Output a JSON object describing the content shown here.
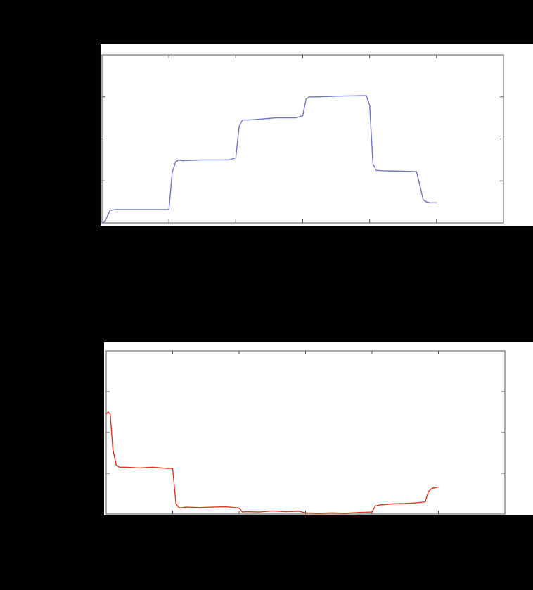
{
  "chart_data": [
    {
      "type": "line",
      "title": "",
      "xlabel": "",
      "ylabel": "",
      "xlim": [
        0,
        6
      ],
      "ylim": [
        0,
        4
      ],
      "x_ticks": [
        1,
        2,
        3,
        4,
        5
      ],
      "y_ticks": [
        1,
        2,
        3
      ],
      "grid": false,
      "series": [
        {
          "color": "#6f76c8",
          "x": [
            0,
            0.05,
            0.12,
            0.2,
            0.5,
            1.0,
            1.05,
            1.1,
            1.15,
            1.2,
            1.5,
            1.9,
            2.0,
            2.05,
            2.1,
            2.2,
            2.6,
            2.9,
            3.0,
            3.05,
            3.1,
            3.2,
            3.6,
            3.95,
            4.0,
            4.05,
            4.1,
            4.2,
            4.5,
            4.7,
            4.75,
            4.8,
            4.85,
            4.9,
            5.0
          ],
          "y": [
            0.0,
            0.05,
            0.3,
            0.32,
            0.32,
            0.32,
            1.2,
            1.45,
            1.5,
            1.48,
            1.5,
            1.5,
            1.55,
            2.3,
            2.45,
            2.45,
            2.5,
            2.5,
            2.55,
            2.95,
            3.0,
            3.0,
            3.02,
            3.03,
            2.8,
            1.4,
            1.25,
            1.24,
            1.23,
            1.22,
            0.9,
            0.55,
            0.5,
            0.48,
            0.48
          ]
        }
      ]
    },
    {
      "type": "line",
      "title": "",
      "xlabel": "",
      "ylabel": "",
      "xlim": [
        0,
        6
      ],
      "ylim": [
        0,
        4
      ],
      "x_ticks": [
        1,
        2,
        3,
        4,
        5
      ],
      "y_ticks": [
        1,
        2,
        3
      ],
      "grid": false,
      "series": [
        {
          "color": "#e2371c",
          "x": [
            0,
            0.03,
            0.06,
            0.1,
            0.15,
            0.2,
            0.3,
            0.5,
            0.7,
            0.9,
            1.0,
            1.05,
            1.1,
            1.2,
            1.4,
            1.6,
            1.8,
            2.0,
            2.05,
            2.1,
            2.3,
            2.5,
            2.7,
            2.9,
            3.0,
            3.2,
            3.4,
            3.6,
            3.8,
            4.0,
            4.05,
            4.1,
            4.3,
            4.5,
            4.7,
            4.8,
            4.85,
            4.9,
            5.0
          ],
          "y": [
            2.45,
            2.5,
            2.45,
            1.6,
            1.2,
            1.15,
            1.15,
            1.13,
            1.15,
            1.12,
            1.12,
            0.25,
            0.15,
            0.17,
            0.16,
            0.17,
            0.18,
            0.15,
            0.05,
            0.06,
            0.05,
            0.08,
            0.06,
            0.07,
            0.03,
            0.02,
            0.03,
            0.02,
            0.04,
            0.05,
            0.2,
            0.22,
            0.25,
            0.26,
            0.28,
            0.3,
            0.55,
            0.63,
            0.66
          ]
        }
      ]
    }
  ]
}
